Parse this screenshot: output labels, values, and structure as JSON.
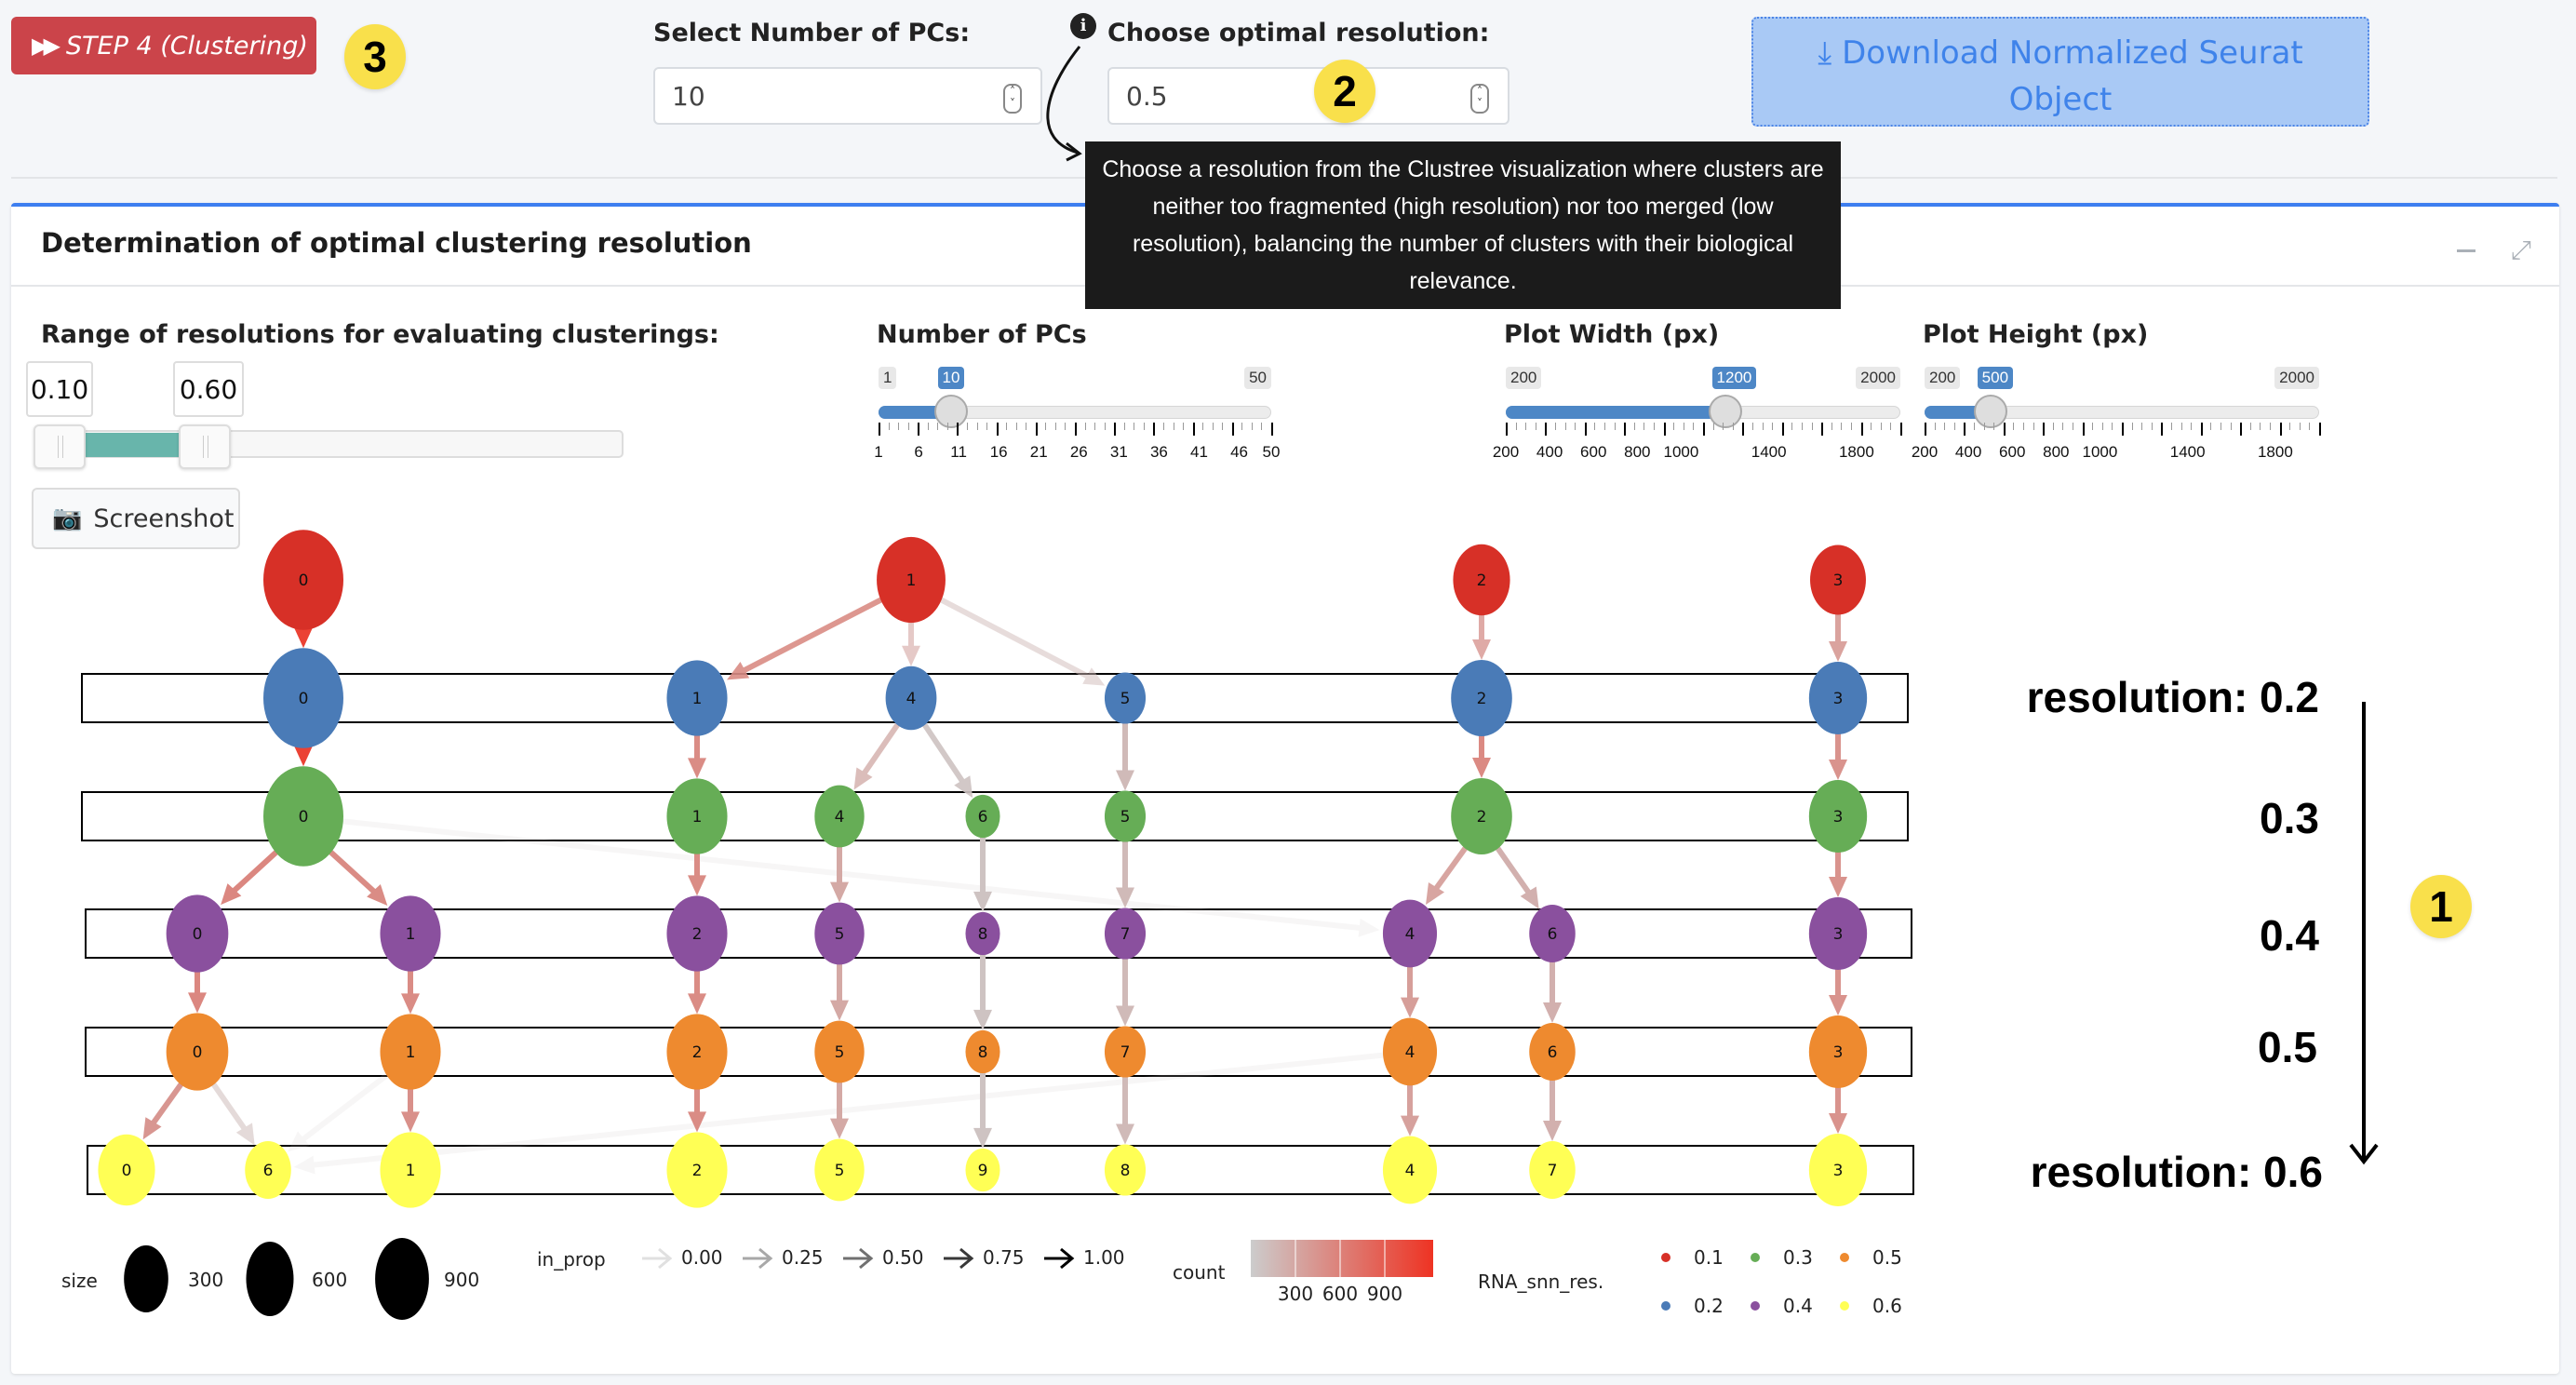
{
  "toolbar": {
    "step_button": "STEP 4 (Clustering)",
    "step_icon": "fast-forward-icon",
    "download_button_line1": "Download Normalized Seurat",
    "download_button_line2": "Object",
    "download_icon": "download-icon"
  },
  "annotations": {
    "badge_1": "1",
    "badge_2": "2",
    "badge_3": "3"
  },
  "pcs_input": {
    "label": "Select Number of PCs:",
    "value": "10"
  },
  "resolution_input": {
    "label": "Choose optimal resolution:",
    "value": "0.5",
    "info_icon": "info-circle-icon"
  },
  "tooltip": {
    "text": "Choose a resolution from the Clustree visualization where clusters are neither too fragmented (high resolution) nor too merged (low resolution), balancing the number of clusters with their biological relevance."
  },
  "box": {
    "title": "Determination of optimal clustering resolution"
  },
  "controls": {
    "range": {
      "label": "Range of resolutions for evaluating clusterings:",
      "min_value": "0.10",
      "max_value": "0.60"
    },
    "pcs_slider": {
      "label": "Number of PCs",
      "min": "1",
      "max": "50",
      "value": "10",
      "ticks": [
        "1",
        "6",
        "11",
        "16",
        "21",
        "26",
        "31",
        "36",
        "41",
        "46",
        "50"
      ]
    },
    "width_slider": {
      "label": "Plot Width (px)",
      "min": "200",
      "max": "2000",
      "value": "1200",
      "ticks": [
        "200",
        "400",
        "600",
        "800",
        "1000",
        "1400",
        "1800"
      ]
    },
    "height_slider": {
      "label": "Plot Height (px)",
      "min": "200",
      "max": "2000",
      "value": "500",
      "ticks": [
        "200",
        "400",
        "600",
        "800",
        "1000",
        "1400",
        "1800"
      ]
    },
    "screenshot_button": "Screenshot"
  },
  "resolution_labels": {
    "first": "resolution:  0.2",
    "r03": "0.3",
    "r04": "0.4",
    "r05": "0.5",
    "last": "resolution:  0.6"
  },
  "chart_data": {
    "type": "clustree",
    "resolutions": [
      "0.1",
      "0.2",
      "0.3",
      "0.4",
      "0.5",
      "0.6"
    ],
    "colors": {
      "0.1": "#d73027",
      "0.2": "#4a7bb7",
      "0.3": "#66ad56",
      "0.4": "#8a509e",
      "0.5": "#ee8a2f",
      "0.6": "#ffff55"
    },
    "nodes": [
      {
        "id": "a0",
        "res": "0.1",
        "cluster": "0",
        "col": 0,
        "size": 900
      },
      {
        "id": "a1",
        "res": "0.1",
        "cluster": "1",
        "col": 4,
        "size": 600
      },
      {
        "id": "a2",
        "res": "0.1",
        "cluster": "2",
        "col": 7,
        "size": 350
      },
      {
        "id": "a3",
        "res": "0.1",
        "cluster": "3",
        "col": 9,
        "size": 330
      },
      {
        "id": "b0",
        "res": "0.2",
        "cluster": "0",
        "col": 0,
        "size": 900
      },
      {
        "id": "b1",
        "res": "0.2",
        "cluster": "1",
        "col": 2,
        "size": 420
      },
      {
        "id": "b4",
        "res": "0.2",
        "cluster": "4",
        "col": 4,
        "size": 250
      },
      {
        "id": "b5",
        "res": "0.2",
        "cluster": "5",
        "col": 6,
        "size": 120
      },
      {
        "id": "b2",
        "res": "0.2",
        "cluster": "2",
        "col": 7,
        "size": 430
      },
      {
        "id": "b3",
        "res": "0.2",
        "cluster": "3",
        "col": 9,
        "size": 370
      },
      {
        "id": "c0",
        "res": "0.3",
        "cluster": "0",
        "col": 0,
        "size": 900
      },
      {
        "id": "c1",
        "res": "0.3",
        "cluster": "1",
        "col": 2,
        "size": 420
      },
      {
        "id": "c4",
        "res": "0.3",
        "cluster": "4",
        "col": 3,
        "size": 230
      },
      {
        "id": "c6",
        "res": "0.3",
        "cluster": "6",
        "col": 5,
        "size": 60
      },
      {
        "id": "c5",
        "res": "0.3",
        "cluster": "5",
        "col": 6,
        "size": 120
      },
      {
        "id": "c2",
        "res": "0.3",
        "cluster": "2",
        "col": 7,
        "size": 430
      },
      {
        "id": "c3",
        "res": "0.3",
        "cluster": "3",
        "col": 9,
        "size": 370
      },
      {
        "id": "d0",
        "res": "0.4",
        "cluster": "0",
        "col": -2,
        "size": 450
      },
      {
        "id": "d1",
        "res": "0.4",
        "cluster": "1",
        "col": -1,
        "size": 420
      },
      {
        "id": "d2",
        "res": "0.4",
        "cluster": "2",
        "col": 2,
        "size": 420
      },
      {
        "id": "d5",
        "res": "0.4",
        "cluster": "5",
        "col": 3,
        "size": 230
      },
      {
        "id": "d8",
        "res": "0.4",
        "cluster": "8",
        "col": 5,
        "size": 60
      },
      {
        "id": "d7",
        "res": "0.4",
        "cluster": "7",
        "col": 6,
        "size": 120
      },
      {
        "id": "d4",
        "res": "0.4",
        "cluster": "4",
        "col": 8,
        "size": 300
      },
      {
        "id": "d6",
        "res": "0.4",
        "cluster": "6",
        "col": "8b",
        "size": 180
      },
      {
        "id": "d3",
        "res": "0.4",
        "cluster": "3",
        "col": 9,
        "size": 370
      },
      {
        "id": "e0",
        "res": "0.5",
        "cluster": "0",
        "col": -2,
        "size": 450
      },
      {
        "id": "e1",
        "res": "0.5",
        "cluster": "1",
        "col": -1,
        "size": 420
      },
      {
        "id": "e2",
        "res": "0.5",
        "cluster": "2",
        "col": 2,
        "size": 420
      },
      {
        "id": "e5",
        "res": "0.5",
        "cluster": "5",
        "col": 3,
        "size": 230
      },
      {
        "id": "e8",
        "res": "0.5",
        "cluster": "8",
        "col": 5,
        "size": 60
      },
      {
        "id": "e7",
        "res": "0.5",
        "cluster": "7",
        "col": 6,
        "size": 120
      },
      {
        "id": "e4",
        "res": "0.5",
        "cluster": "4",
        "col": 8,
        "size": 300
      },
      {
        "id": "e6",
        "res": "0.5",
        "cluster": "6",
        "col": "8b",
        "size": 180
      },
      {
        "id": "e3",
        "res": "0.5",
        "cluster": "3",
        "col": 9,
        "size": 370
      },
      {
        "id": "f0",
        "res": "0.6",
        "cluster": "0",
        "col": -3,
        "size": 350
      },
      {
        "id": "f6",
        "res": "0.6",
        "cluster": "6",
        "col": "-2b",
        "size": 180
      },
      {
        "id": "f1",
        "res": "0.6",
        "cluster": "1",
        "col": -1,
        "size": 420
      },
      {
        "id": "f2",
        "res": "0.6",
        "cluster": "2",
        "col": 2,
        "size": 420
      },
      {
        "id": "f5",
        "res": "0.6",
        "cluster": "5",
        "col": 3,
        "size": 230
      },
      {
        "id": "f9",
        "res": "0.6",
        "cluster": "9",
        "col": 5,
        "size": 60
      },
      {
        "id": "f8",
        "res": "0.6",
        "cluster": "8",
        "col": 6,
        "size": 120
      },
      {
        "id": "f4",
        "res": "0.6",
        "cluster": "4",
        "col": 8,
        "size": 300
      },
      {
        "id": "f7",
        "res": "0.6",
        "cluster": "7",
        "col": "8b",
        "size": 180
      },
      {
        "id": "f3",
        "res": "0.6",
        "cluster": "3",
        "col": 9,
        "size": 370
      }
    ],
    "edges": [
      {
        "from": "a0",
        "to": "b0",
        "count": 900,
        "in_prop": 1.0
      },
      {
        "from": "a1",
        "to": "b1",
        "count": 420,
        "in_prop": 0.9
      },
      {
        "from": "a1",
        "to": "b4",
        "count": 250,
        "in_prop": 0.6
      },
      {
        "from": "a1",
        "to": "b5",
        "count": 120,
        "in_prop": 0.5
      },
      {
        "from": "a2",
        "to": "b2",
        "count": 350,
        "in_prop": 0.8
      },
      {
        "from": "a3",
        "to": "b3",
        "count": 330,
        "in_prop": 0.9
      },
      {
        "from": "b0",
        "to": "c0",
        "count": 900,
        "in_prop": 1.0
      },
      {
        "from": "b1",
        "to": "c1",
        "count": 420,
        "in_prop": 1.0
      },
      {
        "from": "b4",
        "to": "c4",
        "count": 200,
        "in_prop": 0.8
      },
      {
        "from": "b4",
        "to": "c6",
        "count": 60,
        "in_prop": 0.9
      },
      {
        "from": "b5",
        "to": "c5",
        "count": 120,
        "in_prop": 1.0
      },
      {
        "from": "b2",
        "to": "c2",
        "count": 430,
        "in_prop": 1.0
      },
      {
        "from": "b3",
        "to": "c3",
        "count": 370,
        "in_prop": 1.0
      },
      {
        "from": "c0",
        "to": "d0",
        "count": 450,
        "in_prop": 1.0
      },
      {
        "from": "c0",
        "to": "d1",
        "count": 420,
        "in_prop": 1.0
      },
      {
        "from": "c0",
        "to": "d4",
        "count": 20,
        "in_prop": 0.05
      },
      {
        "from": "c1",
        "to": "d2",
        "count": 420,
        "in_prop": 1.0
      },
      {
        "from": "c4",
        "to": "d5",
        "count": 230,
        "in_prop": 1.0
      },
      {
        "from": "c6",
        "to": "d8",
        "count": 60,
        "in_prop": 1.0
      },
      {
        "from": "c5",
        "to": "d7",
        "count": 120,
        "in_prop": 1.0
      },
      {
        "from": "c2",
        "to": "d4",
        "count": 280,
        "in_prop": 0.95
      },
      {
        "from": "c2",
        "to": "d6",
        "count": 180,
        "in_prop": 1.0
      },
      {
        "from": "c3",
        "to": "d3",
        "count": 370,
        "in_prop": 1.0
      },
      {
        "from": "d0",
        "to": "e0",
        "count": 450,
        "in_prop": 1.0
      },
      {
        "from": "d1",
        "to": "e1",
        "count": 420,
        "in_prop": 1.0
      },
      {
        "from": "d2",
        "to": "e2",
        "count": 420,
        "in_prop": 1.0
      },
      {
        "from": "d5",
        "to": "e5",
        "count": 230,
        "in_prop": 1.0
      },
      {
        "from": "d8",
        "to": "e8",
        "count": 60,
        "in_prop": 1.0
      },
      {
        "from": "d7",
        "to": "e7",
        "count": 120,
        "in_prop": 1.0
      },
      {
        "from": "d4",
        "to": "e4",
        "count": 300,
        "in_prop": 1.0
      },
      {
        "from": "d6",
        "to": "e6",
        "count": 180,
        "in_prop": 1.0
      },
      {
        "from": "d3",
        "to": "e3",
        "count": 370,
        "in_prop": 1.0
      },
      {
        "from": "e0",
        "to": "f0",
        "count": 350,
        "in_prop": 1.0
      },
      {
        "from": "e0",
        "to": "f6",
        "count": 100,
        "in_prop": 0.55
      },
      {
        "from": "e1",
        "to": "f6",
        "count": 30,
        "in_prop": 0.15
      },
      {
        "from": "e4",
        "to": "f6",
        "count": 20,
        "in_prop": 0.1
      },
      {
        "from": "e1",
        "to": "f1",
        "count": 390,
        "in_prop": 1.0
      },
      {
        "from": "e2",
        "to": "f2",
        "count": 420,
        "in_prop": 1.0
      },
      {
        "from": "e5",
        "to": "f5",
        "count": 230,
        "in_prop": 1.0
      },
      {
        "from": "e8",
        "to": "f9",
        "count": 60,
        "in_prop": 1.0
      },
      {
        "from": "e7",
        "to": "f8",
        "count": 120,
        "in_prop": 1.0
      },
      {
        "from": "e4",
        "to": "f4",
        "count": 280,
        "in_prop": 1.0
      },
      {
        "from": "e6",
        "to": "f7",
        "count": 180,
        "in_prop": 1.0
      },
      {
        "from": "e3",
        "to": "f3",
        "count": 370,
        "in_prop": 1.0
      }
    ],
    "legend": {
      "size_title": "size",
      "size_values": [
        "300",
        "600",
        "900"
      ],
      "in_prop_title": "in_prop",
      "in_prop_values": [
        "0.00",
        "0.25",
        "0.50",
        "0.75",
        "1.00"
      ],
      "count_title": "count",
      "count_values": [
        "300",
        "600",
        "900"
      ],
      "res_title": "RNA_snn_res.",
      "res_values": [
        "0.1",
        "0.2",
        "0.3",
        "0.4",
        "0.5",
        "0.6"
      ]
    }
  }
}
